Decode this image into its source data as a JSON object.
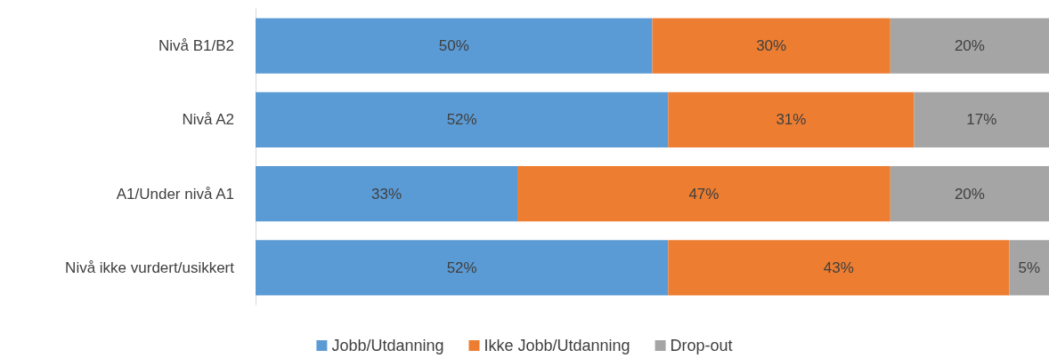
{
  "chart_data": {
    "type": "bar",
    "orientation": "horizontal",
    "stacked": true,
    "legend": "bottom",
    "categories": [
      "Nivå B1/B2",
      "Nivå A2",
      "A1/Under nivå A1",
      "Nivå ikke vurdert/usikkert"
    ],
    "series": [
      {
        "name": "Jobb/Utdanning",
        "color": "#5b9bd5",
        "values": [
          50,
          52,
          33,
          52
        ],
        "value_labels": [
          "50%",
          "52%",
          "33%",
          "52%"
        ]
      },
      {
        "name": "Ikke Jobb/Utdanning",
        "color": "#ed7d31",
        "values": [
          30,
          31,
          47,
          43
        ],
        "value_labels": [
          "30%",
          "31%",
          "47%",
          "43%"
        ]
      },
      {
        "name": "Drop-out",
        "color": "#a5a5a5",
        "values": [
          20,
          17,
          20,
          5
        ],
        "value_labels": [
          "20%",
          "17%",
          "20%",
          "5%"
        ]
      }
    ]
  }
}
